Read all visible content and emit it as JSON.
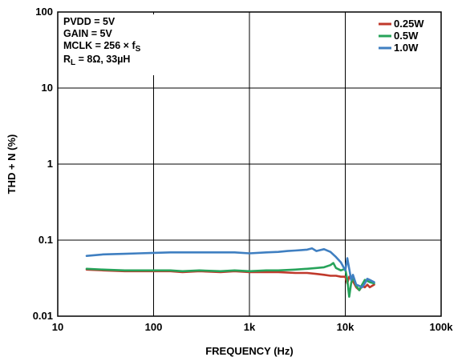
{
  "chart_data": {
    "type": "line",
    "xlabel": "FREQUENCY (Hz)",
    "ylabel": "THD + N (%)",
    "xscale": "log",
    "yscale": "log",
    "xlim": [
      10,
      100000
    ],
    "ylim": [
      0.01,
      100
    ],
    "grid": true,
    "legend_position": "top-right",
    "x_ticks": [
      {
        "value": 10,
        "label": "10"
      },
      {
        "value": 100,
        "label": "100"
      },
      {
        "value": 1000,
        "label": "1k"
      },
      {
        "value": 10000,
        "label": "10k"
      },
      {
        "value": 100000,
        "label": "100k"
      }
    ],
    "y_ticks": [
      {
        "value": 0.01,
        "label": "0.01"
      },
      {
        "value": 0.1,
        "label": "0.1"
      },
      {
        "value": 1,
        "label": "1"
      },
      {
        "value": 10,
        "label": "10"
      },
      {
        "value": 100,
        "label": "100"
      }
    ],
    "annotations": [
      {
        "text": "PVDD = 5V"
      },
      {
        "text": "GAIN = 5V"
      },
      {
        "text": "MCLK = 256 × f",
        "subscript": "S"
      },
      {
        "text": "R",
        "subscript": "L",
        "suffix": " = 8Ω, 33µH"
      }
    ],
    "series": [
      {
        "name": "0.25W",
        "color": "#c0392b",
        "x": [
          20,
          30,
          50,
          70,
          100,
          150,
          200,
          300,
          500,
          700,
          1000,
          1500,
          2000,
          3000,
          4000,
          5000,
          6000,
          7000,
          8000,
          9000,
          10000,
          10500,
          11000,
          12000,
          13000,
          14000,
          15000,
          16000,
          17000,
          18000,
          20000
        ],
        "y": [
          0.041,
          0.04,
          0.039,
          0.039,
          0.039,
          0.039,
          0.038,
          0.039,
          0.038,
          0.039,
          0.038,
          0.038,
          0.038,
          0.037,
          0.037,
          0.036,
          0.035,
          0.034,
          0.034,
          0.033,
          0.033,
          0.027,
          0.033,
          0.029,
          0.024,
          0.022,
          0.025,
          0.024,
          0.026,
          0.024,
          0.026
        ]
      },
      {
        "name": "0.5W",
        "color": "#27a35a",
        "x": [
          20,
          30,
          50,
          70,
          100,
          150,
          200,
          300,
          500,
          700,
          1000,
          1500,
          2000,
          3000,
          4000,
          5000,
          6000,
          7000,
          7500,
          8000,
          9000,
          10000,
          10500,
          11000,
          11500,
          12000,
          13000,
          14000,
          15000,
          16000,
          17000,
          18000,
          20000
        ],
        "y": [
          0.042,
          0.041,
          0.04,
          0.04,
          0.04,
          0.04,
          0.039,
          0.04,
          0.039,
          0.04,
          0.039,
          0.04,
          0.04,
          0.041,
          0.042,
          0.043,
          0.044,
          0.047,
          0.05,
          0.043,
          0.04,
          0.042,
          0.03,
          0.018,
          0.027,
          0.033,
          0.025,
          0.022,
          0.026,
          0.03,
          0.029,
          0.028,
          0.027
        ]
      },
      {
        "name": "1.0W",
        "color": "#3f7fc1",
        "x": [
          20,
          30,
          50,
          70,
          100,
          150,
          200,
          300,
          500,
          700,
          1000,
          1500,
          2000,
          2500,
          3000,
          3500,
          4000,
          4500,
          5000,
          5500,
          6000,
          7000,
          8000,
          9000,
          10000,
          10500,
          11000,
          11500,
          12000,
          13000,
          14000,
          15000,
          16000,
          17000,
          18000,
          20000
        ],
        "y": [
          0.062,
          0.065,
          0.066,
          0.067,
          0.068,
          0.069,
          0.069,
          0.069,
          0.069,
          0.069,
          0.067,
          0.069,
          0.07,
          0.072,
          0.073,
          0.074,
          0.075,
          0.078,
          0.072,
          0.074,
          0.076,
          0.07,
          0.06,
          0.051,
          0.04,
          0.058,
          0.042,
          0.03,
          0.035,
          0.026,
          0.025,
          0.024,
          0.027,
          0.031,
          0.03,
          0.028
        ]
      }
    ]
  }
}
